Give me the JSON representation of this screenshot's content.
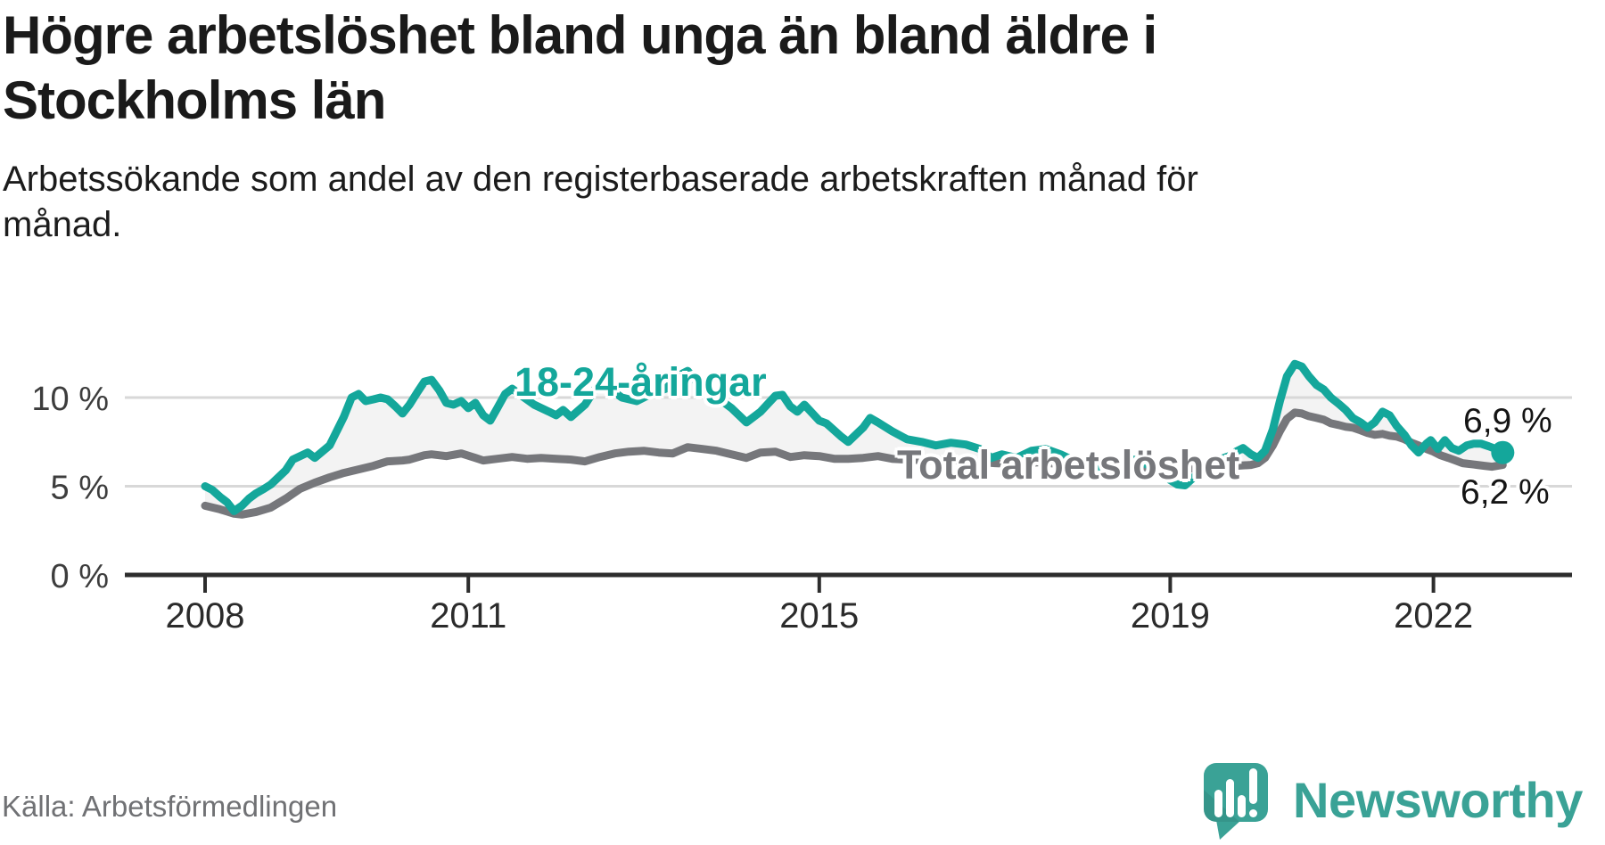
{
  "header": {
    "title_lines": [
      "Högre arbetslöshet bland unga än bland äldre i",
      "Stockholms län"
    ],
    "subtitle_lines": [
      "Arbetssökande som andel av den registerbaserade arbetskraften månad för",
      "månad."
    ]
  },
  "source": "Källa: Arbetsförmedlingen",
  "logo": {
    "text": "Newsworthy"
  },
  "colors": {
    "teal": "#14a79b",
    "gray": "#76777b",
    "grid": "#d8d8d8",
    "axis": "#2d2d2d",
    "fill": "#f3f3f3",
    "logo_teal": "#3aa296"
  },
  "chart_data": {
    "type": "line",
    "title": "Högre arbetslöshet bland unga än bland äldre i Stockholms län",
    "subtitle": "Arbetssökande som andel av den registerbaserade arbetskraften månad för månad.",
    "unit": "%",
    "grid": "horizontal",
    "x_axis": {
      "ticks": [
        2008,
        2011,
        2015,
        2019,
        2022
      ],
      "range": [
        2007.1,
        2023.6
      ]
    },
    "y_axis": {
      "ticks": [
        {
          "value": 10,
          "label": "10 %"
        },
        {
          "value": 5,
          "label": "5 %"
        },
        {
          "value": 0,
          "label": "0 %"
        }
      ],
      "range": [
        0,
        12.6
      ]
    },
    "area_fill_between_series": true,
    "series": [
      {
        "name": "18-24-åringar",
        "color": "#14a79b",
        "end_label": "6,9 %",
        "end_value": 6.9,
        "points": [
          [
            2008.0,
            5.0
          ],
          [
            2008.08,
            4.8
          ],
          [
            2008.17,
            4.4
          ],
          [
            2008.25,
            4.1
          ],
          [
            2008.33,
            3.6
          ],
          [
            2008.42,
            3.9
          ],
          [
            2008.5,
            4.3
          ],
          [
            2008.58,
            4.6
          ],
          [
            2008.67,
            4.85
          ],
          [
            2008.75,
            5.1
          ],
          [
            2008.92,
            5.9
          ],
          [
            2009.0,
            6.5
          ],
          [
            2009.17,
            6.9
          ],
          [
            2009.25,
            6.6
          ],
          [
            2009.42,
            7.3
          ],
          [
            2009.58,
            8.9
          ],
          [
            2009.67,
            10.0
          ],
          [
            2009.75,
            10.2
          ],
          [
            2009.83,
            9.8
          ],
          [
            2009.92,
            9.9
          ],
          [
            2010.0,
            10.0
          ],
          [
            2010.08,
            9.9
          ],
          [
            2010.17,
            9.5
          ],
          [
            2010.25,
            9.1
          ],
          [
            2010.33,
            9.6
          ],
          [
            2010.42,
            10.3
          ],
          [
            2010.5,
            10.9
          ],
          [
            2010.58,
            11.0
          ],
          [
            2010.67,
            10.4
          ],
          [
            2010.75,
            9.7
          ],
          [
            2010.83,
            9.6
          ],
          [
            2010.92,
            9.8
          ],
          [
            2011.0,
            9.4
          ],
          [
            2011.08,
            9.7
          ],
          [
            2011.17,
            9.0
          ],
          [
            2011.25,
            8.7
          ],
          [
            2011.33,
            9.4
          ],
          [
            2011.42,
            10.2
          ],
          [
            2011.5,
            10.5
          ],
          [
            2011.58,
            10.2
          ],
          [
            2011.75,
            9.6
          ],
          [
            2011.92,
            9.2
          ],
          [
            2012.0,
            9.0
          ],
          [
            2012.08,
            9.3
          ],
          [
            2012.17,
            8.9
          ],
          [
            2012.33,
            9.6
          ],
          [
            2012.5,
            10.9
          ],
          [
            2012.58,
            10.6
          ],
          [
            2012.75,
            10.0
          ],
          [
            2012.92,
            9.8
          ],
          [
            2013.08,
            10.2
          ],
          [
            2013.25,
            10.5
          ],
          [
            2013.42,
            11.3
          ],
          [
            2013.5,
            11.5
          ],
          [
            2013.58,
            11.0
          ],
          [
            2013.75,
            10.3
          ],
          [
            2013.92,
            9.7
          ],
          [
            2014.0,
            9.4
          ],
          [
            2014.17,
            8.6
          ],
          [
            2014.33,
            9.2
          ],
          [
            2014.5,
            10.1
          ],
          [
            2014.58,
            10.15
          ],
          [
            2014.67,
            9.5
          ],
          [
            2014.75,
            9.2
          ],
          [
            2014.83,
            9.6
          ],
          [
            2015.0,
            8.7
          ],
          [
            2015.08,
            8.55
          ],
          [
            2015.25,
            7.8
          ],
          [
            2015.33,
            7.5
          ],
          [
            2015.5,
            8.3
          ],
          [
            2015.58,
            8.85
          ],
          [
            2015.67,
            8.6
          ],
          [
            2015.83,
            8.1
          ],
          [
            2016.0,
            7.65
          ],
          [
            2016.17,
            7.5
          ],
          [
            2016.33,
            7.3
          ],
          [
            2016.5,
            7.45
          ],
          [
            2016.67,
            7.35
          ],
          [
            2016.83,
            7.1
          ],
          [
            2016.96,
            6.6
          ],
          [
            2017.08,
            6.8
          ],
          [
            2017.25,
            6.6
          ],
          [
            2017.42,
            7.0
          ],
          [
            2017.58,
            7.1
          ],
          [
            2017.75,
            6.8
          ],
          [
            2017.92,
            6.4
          ],
          [
            2018.08,
            6.2
          ],
          [
            2018.25,
            5.9
          ],
          [
            2018.42,
            6.3
          ],
          [
            2018.58,
            6.5
          ],
          [
            2018.75,
            6.2
          ],
          [
            2018.92,
            5.6
          ],
          [
            2019.08,
            5.1
          ],
          [
            2019.17,
            5.05
          ],
          [
            2019.33,
            5.8
          ],
          [
            2019.5,
            6.4
          ],
          [
            2019.67,
            6.7
          ],
          [
            2019.75,
            6.95
          ],
          [
            2019.83,
            7.15
          ],
          [
            2019.92,
            6.8
          ],
          [
            2020.0,
            6.6
          ],
          [
            2020.08,
            7.0
          ],
          [
            2020.17,
            8.2
          ],
          [
            2020.25,
            9.8
          ],
          [
            2020.33,
            11.2
          ],
          [
            2020.42,
            11.9
          ],
          [
            2020.5,
            11.75
          ],
          [
            2020.58,
            11.2
          ],
          [
            2020.67,
            10.7
          ],
          [
            2020.75,
            10.45
          ],
          [
            2020.83,
            10.0
          ],
          [
            2020.92,
            9.65
          ],
          [
            2021.0,
            9.3
          ],
          [
            2021.08,
            8.85
          ],
          [
            2021.17,
            8.6
          ],
          [
            2021.25,
            8.3
          ],
          [
            2021.33,
            8.6
          ],
          [
            2021.42,
            9.2
          ],
          [
            2021.5,
            9.0
          ],
          [
            2021.58,
            8.4
          ],
          [
            2021.67,
            7.9
          ],
          [
            2021.75,
            7.3
          ],
          [
            2021.83,
            6.9
          ],
          [
            2021.92,
            7.4
          ],
          [
            2021.97,
            7.6
          ],
          [
            2022.05,
            7.1
          ],
          [
            2022.13,
            7.6
          ],
          [
            2022.21,
            7.15
          ],
          [
            2022.29,
            7.0
          ],
          [
            2022.38,
            7.3
          ],
          [
            2022.46,
            7.4
          ],
          [
            2022.54,
            7.4
          ],
          [
            2022.63,
            7.25
          ],
          [
            2022.71,
            7.1
          ],
          [
            2022.79,
            6.9
          ]
        ]
      },
      {
        "name": "Total arbetslöshet",
        "color": "#76777b",
        "end_label": "6,2 %",
        "end_value": 6.2,
        "points": [
          [
            2008.0,
            3.9
          ],
          [
            2008.17,
            3.7
          ],
          [
            2008.33,
            3.45
          ],
          [
            2008.42,
            3.4
          ],
          [
            2008.58,
            3.55
          ],
          [
            2008.75,
            3.8
          ],
          [
            2008.92,
            4.3
          ],
          [
            2009.08,
            4.85
          ],
          [
            2009.25,
            5.2
          ],
          [
            2009.42,
            5.5
          ],
          [
            2009.58,
            5.75
          ],
          [
            2009.75,
            5.95
          ],
          [
            2009.92,
            6.15
          ],
          [
            2010.08,
            6.4
          ],
          [
            2010.25,
            6.45
          ],
          [
            2010.33,
            6.5
          ],
          [
            2010.5,
            6.75
          ],
          [
            2010.58,
            6.8
          ],
          [
            2010.75,
            6.7
          ],
          [
            2010.92,
            6.85
          ],
          [
            2011.08,
            6.6
          ],
          [
            2011.17,
            6.45
          ],
          [
            2011.33,
            6.55
          ],
          [
            2011.5,
            6.65
          ],
          [
            2011.67,
            6.55
          ],
          [
            2011.83,
            6.6
          ],
          [
            2012.0,
            6.55
          ],
          [
            2012.17,
            6.5
          ],
          [
            2012.33,
            6.4
          ],
          [
            2012.5,
            6.65
          ],
          [
            2012.67,
            6.85
          ],
          [
            2012.83,
            6.95
          ],
          [
            2013.0,
            7.0
          ],
          [
            2013.17,
            6.9
          ],
          [
            2013.33,
            6.85
          ],
          [
            2013.5,
            7.2
          ],
          [
            2013.67,
            7.1
          ],
          [
            2013.83,
            7.0
          ],
          [
            2014.0,
            6.8
          ],
          [
            2014.17,
            6.6
          ],
          [
            2014.33,
            6.9
          ],
          [
            2014.5,
            6.95
          ],
          [
            2014.67,
            6.65
          ],
          [
            2014.83,
            6.75
          ],
          [
            2015.0,
            6.7
          ],
          [
            2015.17,
            6.55
          ],
          [
            2015.33,
            6.55
          ],
          [
            2015.5,
            6.6
          ],
          [
            2015.67,
            6.7
          ],
          [
            2015.83,
            6.55
          ],
          [
            2016.0,
            6.5
          ],
          [
            2016.25,
            6.45
          ],
          [
            2016.5,
            6.5
          ],
          [
            2016.75,
            6.4
          ],
          [
            2017.0,
            6.3
          ],
          [
            2017.25,
            6.25
          ],
          [
            2017.5,
            6.35
          ],
          [
            2017.75,
            6.25
          ],
          [
            2018.0,
            6.1
          ],
          [
            2018.25,
            6.0
          ],
          [
            2018.5,
            6.15
          ],
          [
            2018.75,
            6.05
          ],
          [
            2019.0,
            5.95
          ],
          [
            2019.25,
            6.0
          ],
          [
            2019.5,
            6.1
          ],
          [
            2019.75,
            6.15
          ],
          [
            2019.92,
            6.2
          ],
          [
            2020.0,
            6.3
          ],
          [
            2020.08,
            6.6
          ],
          [
            2020.17,
            7.3
          ],
          [
            2020.25,
            8.1
          ],
          [
            2020.33,
            8.8
          ],
          [
            2020.42,
            9.15
          ],
          [
            2020.5,
            9.1
          ],
          [
            2020.58,
            8.95
          ],
          [
            2020.67,
            8.85
          ],
          [
            2020.75,
            8.75
          ],
          [
            2020.83,
            8.55
          ],
          [
            2020.92,
            8.45
          ],
          [
            2021.0,
            8.35
          ],
          [
            2021.08,
            8.3
          ],
          [
            2021.17,
            8.15
          ],
          [
            2021.25,
            8.0
          ],
          [
            2021.33,
            7.9
          ],
          [
            2021.42,
            7.95
          ],
          [
            2021.5,
            7.85
          ],
          [
            2021.58,
            7.8
          ],
          [
            2021.67,
            7.65
          ],
          [
            2021.75,
            7.45
          ],
          [
            2021.83,
            7.3
          ],
          [
            2021.92,
            7.1
          ],
          [
            2022.0,
            6.95
          ],
          [
            2022.08,
            6.75
          ],
          [
            2022.17,
            6.6
          ],
          [
            2022.25,
            6.45
          ],
          [
            2022.33,
            6.3
          ],
          [
            2022.42,
            6.25
          ],
          [
            2022.5,
            6.2
          ],
          [
            2022.58,
            6.15
          ],
          [
            2022.67,
            6.1
          ],
          [
            2022.79,
            6.2
          ]
        ]
      }
    ]
  }
}
